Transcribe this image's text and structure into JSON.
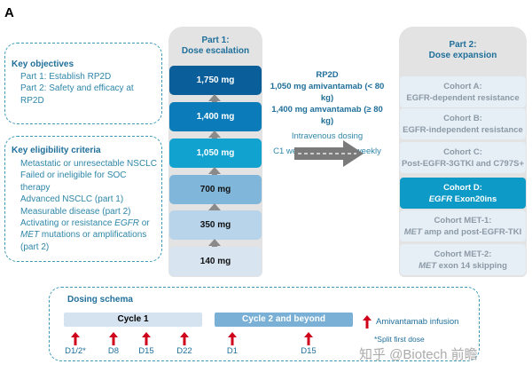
{
  "panel_label": "A",
  "objectives": {
    "title": "Key objectives",
    "items": [
      "Part 1: Establish RP2D",
      "Part 2: Safety and efficacy at RP2D"
    ]
  },
  "eligibility": {
    "title": "Key eligibility criteria",
    "items": [
      "Metastatic or unresectable NSCLC",
      "Failed or ineligible for SOC therapy",
      "Advanced NSCLC (part 1)",
      "Measurable disease (part 2)"
    ],
    "last_item": {
      "pre": "Activating or resistance ",
      "egfr": "EGFR",
      "mid": " or ",
      "met": "MET",
      "post": " mutations or amplifications (part 2)"
    }
  },
  "part1": {
    "title_line1": "Part 1:",
    "title_line2": "Dose escalation",
    "doses": [
      {
        "label": "1,750 mg",
        "color": "#0a5f9a"
      },
      {
        "label": "1,400 mg",
        "color": "#0b7cb9"
      },
      {
        "label": "1,050 mg",
        "color": "#12a2cf"
      },
      {
        "label": "700 mg",
        "color": "#80b6d9"
      },
      {
        "label": "350 mg",
        "color": "#b7d4eb"
      },
      {
        "label": "140 mg",
        "color": "#d8e5f1"
      }
    ]
  },
  "rp2d": {
    "title": "RP2D",
    "line1": "1,050 mg amivantamab (< 80 kg)",
    "line2": "1,400 mg amvantamab (≥ 80 kg)",
    "line3": "Intravenous dosing",
    "line4": "C1 weekly and C2+ biweekly"
  },
  "part2": {
    "title_line1": "Part 2:",
    "title_line2": "Dose expansion",
    "cohorts": [
      {
        "name": "Cohort A:",
        "desc": "EGFR-dependent resistance"
      },
      {
        "name": "Cohort B:",
        "desc": "EGFR-independent resistance"
      },
      {
        "name": "Cohort C:",
        "desc": "Post-EGFR-3GTKI and C797S+"
      },
      {
        "name": "Cohort D:",
        "desc_italic": "EGFR",
        "desc": " Exon20ins",
        "highlight": "#0e9ac7"
      },
      {
        "name": "Cohort MET-1:",
        "desc_italic": "MET",
        "desc": " amp and post-EGFR-TKI"
      },
      {
        "name": "Cohort MET-2:",
        "desc_italic": "MET",
        "desc": " exon 14 skipping"
      }
    ]
  },
  "dosing": {
    "title": "Dosing schema",
    "cycle1": "Cycle 1",
    "cycle2": "Cycle 2 and beyond",
    "days": [
      "D1/2*",
      "D8",
      "D15",
      "D22",
      "D1",
      "D15"
    ],
    "legend": "Amivantamab infusion",
    "footnote": "*Split first dose",
    "arrow_color": "#d0021b"
  },
  "watermark": "知乎 @Biotech 前瞻"
}
